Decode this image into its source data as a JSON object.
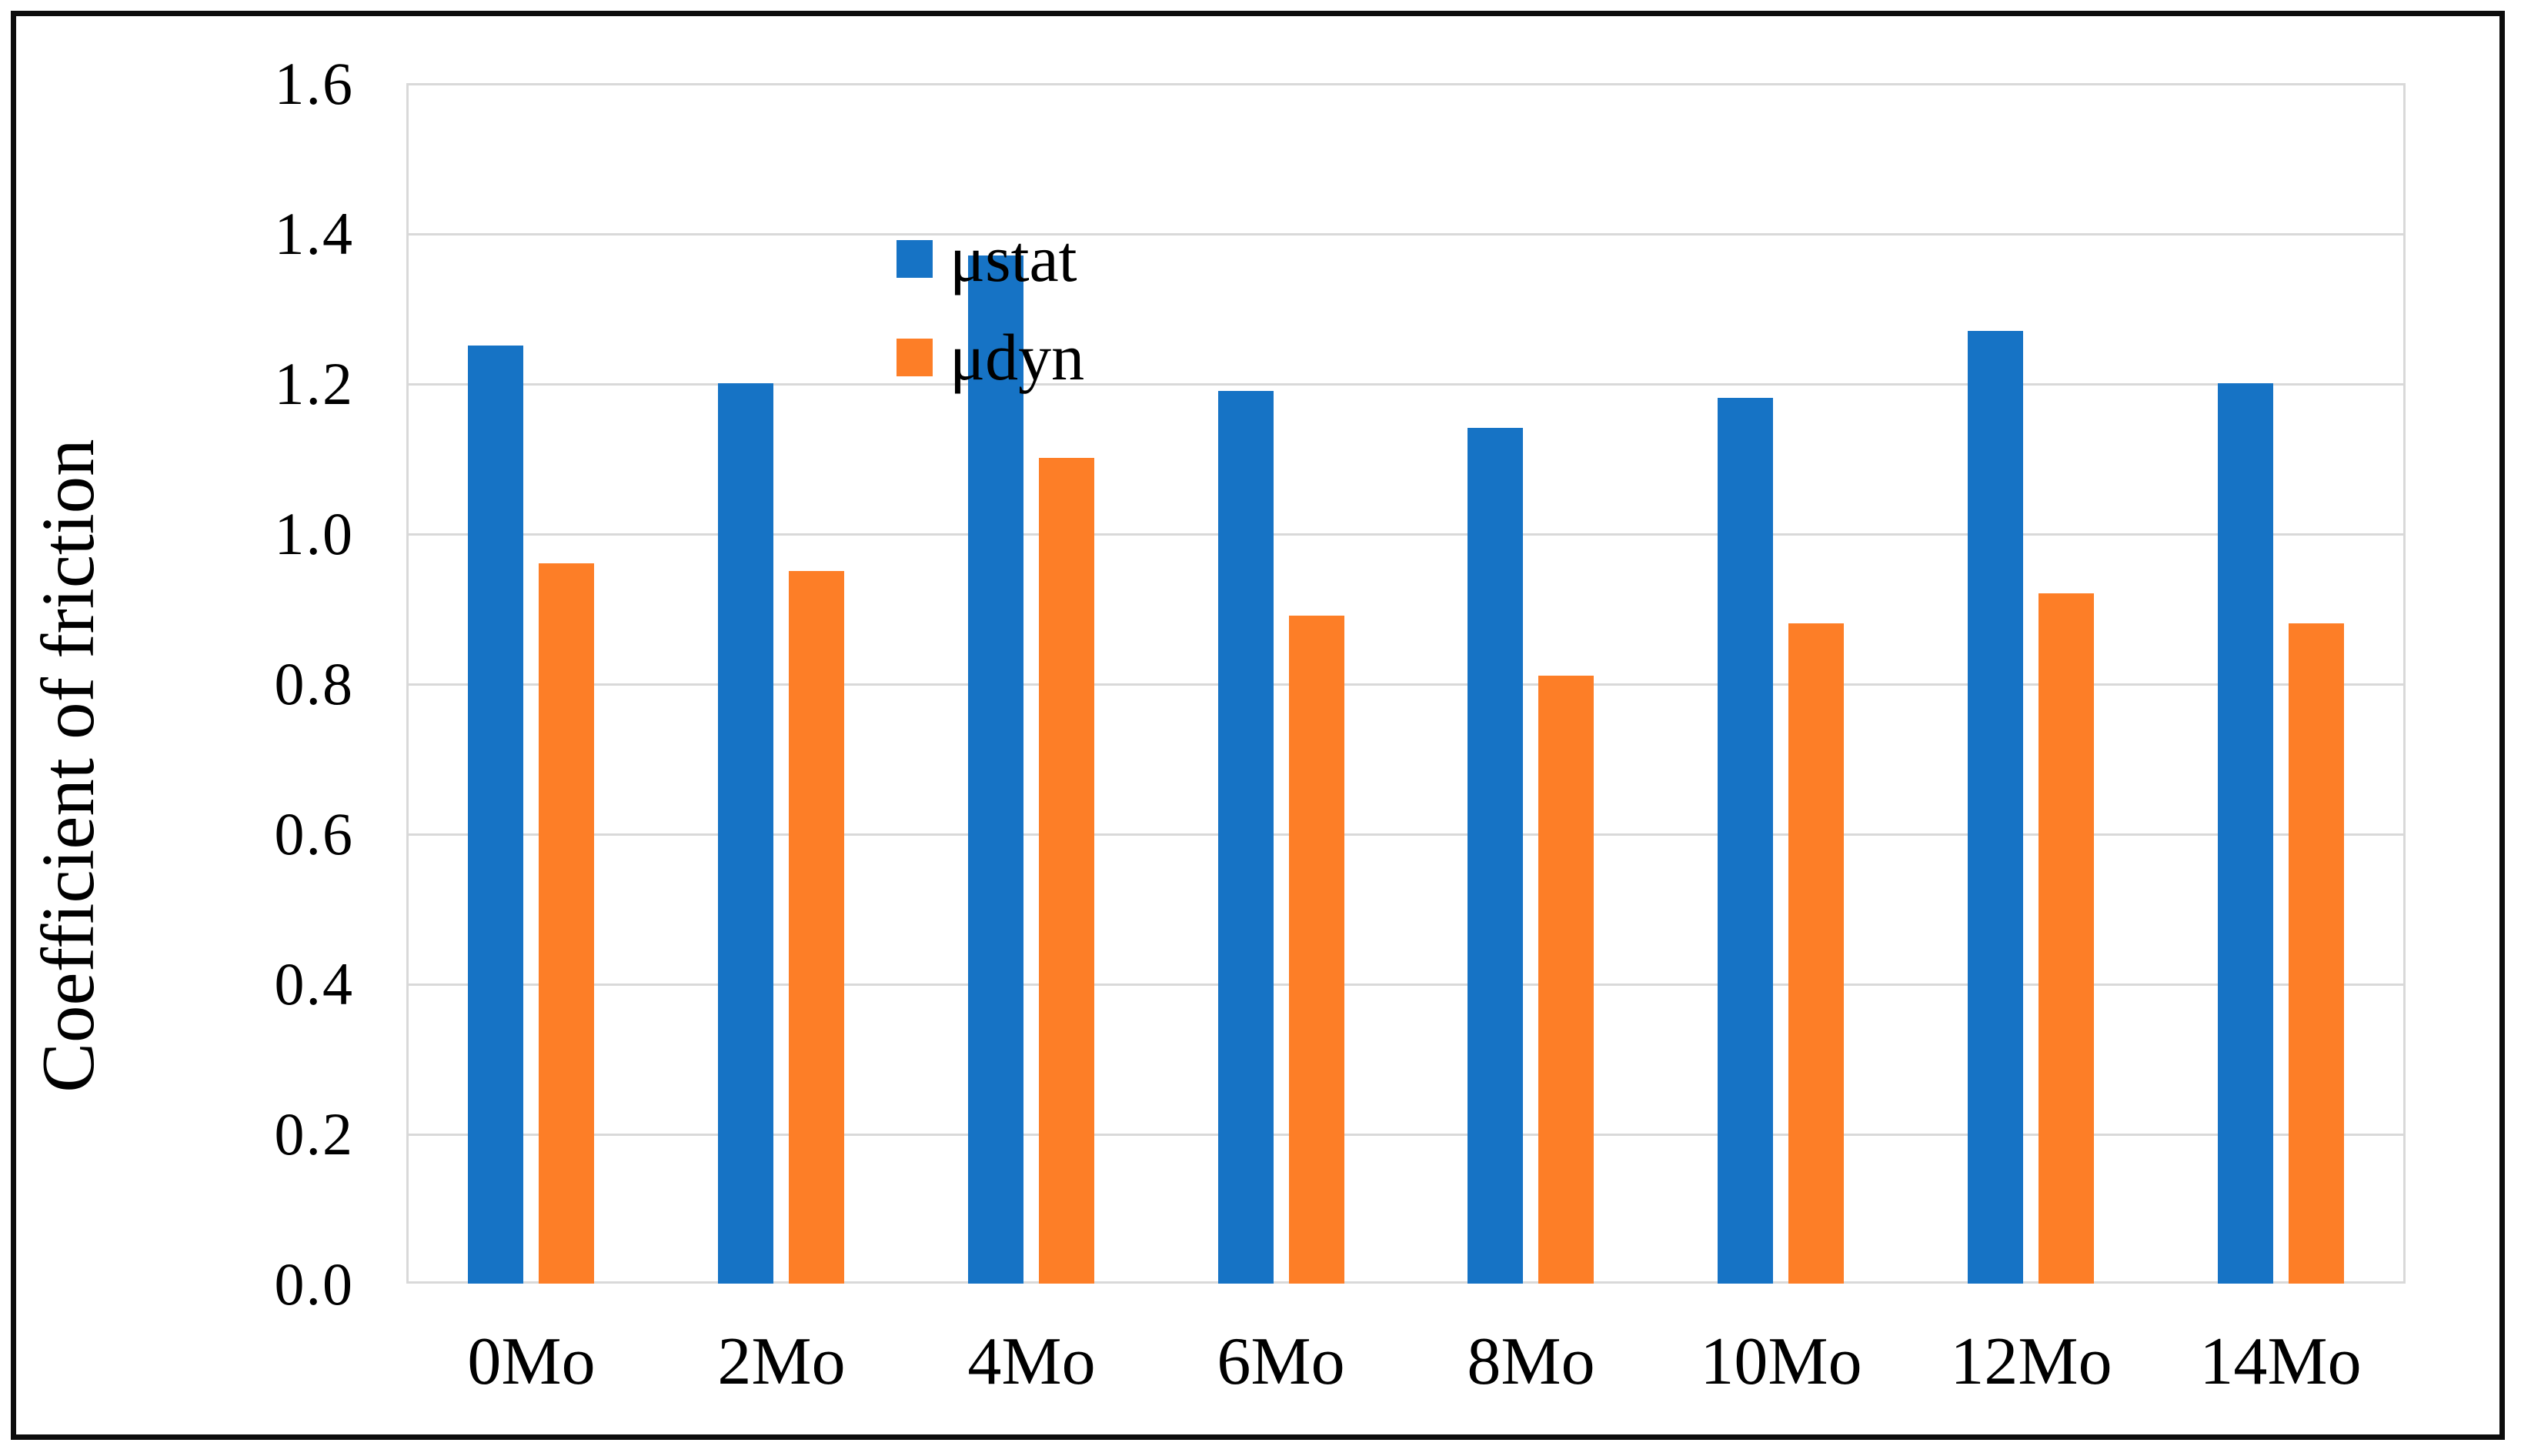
{
  "chart_data": {
    "type": "bar",
    "title": "",
    "xlabel": "",
    "ylabel": "Coefficient of friction",
    "ylim": [
      0.0,
      1.6
    ],
    "ytick_step": 0.2,
    "yticks": [
      "1.6",
      "1.4",
      "1.2",
      "1.0",
      "0.8",
      "0.6",
      "0.4",
      "0.2",
      "0.0"
    ],
    "categories": [
      "0Mo",
      "2Mo",
      "4Mo",
      "6Mo",
      "8Mo",
      "10Mo",
      "12Mo",
      "14Mo"
    ],
    "series": [
      {
        "name": "μstat",
        "color": "#1673c5",
        "values": [
          1.25,
          1.2,
          1.37,
          1.19,
          1.14,
          1.18,
          1.27,
          1.2
        ]
      },
      {
        "name": "μdyn",
        "color": "#fd7e27",
        "values": [
          0.96,
          0.95,
          1.1,
          0.89,
          0.81,
          0.88,
          0.92,
          0.88
        ]
      }
    ],
    "legend_position": "top-left",
    "grid": true,
    "gridline_color": "#d9d9d9",
    "axis_text_color": "#000000",
    "background": "#ffffff",
    "frame_border_color": "#0d0d0d"
  }
}
